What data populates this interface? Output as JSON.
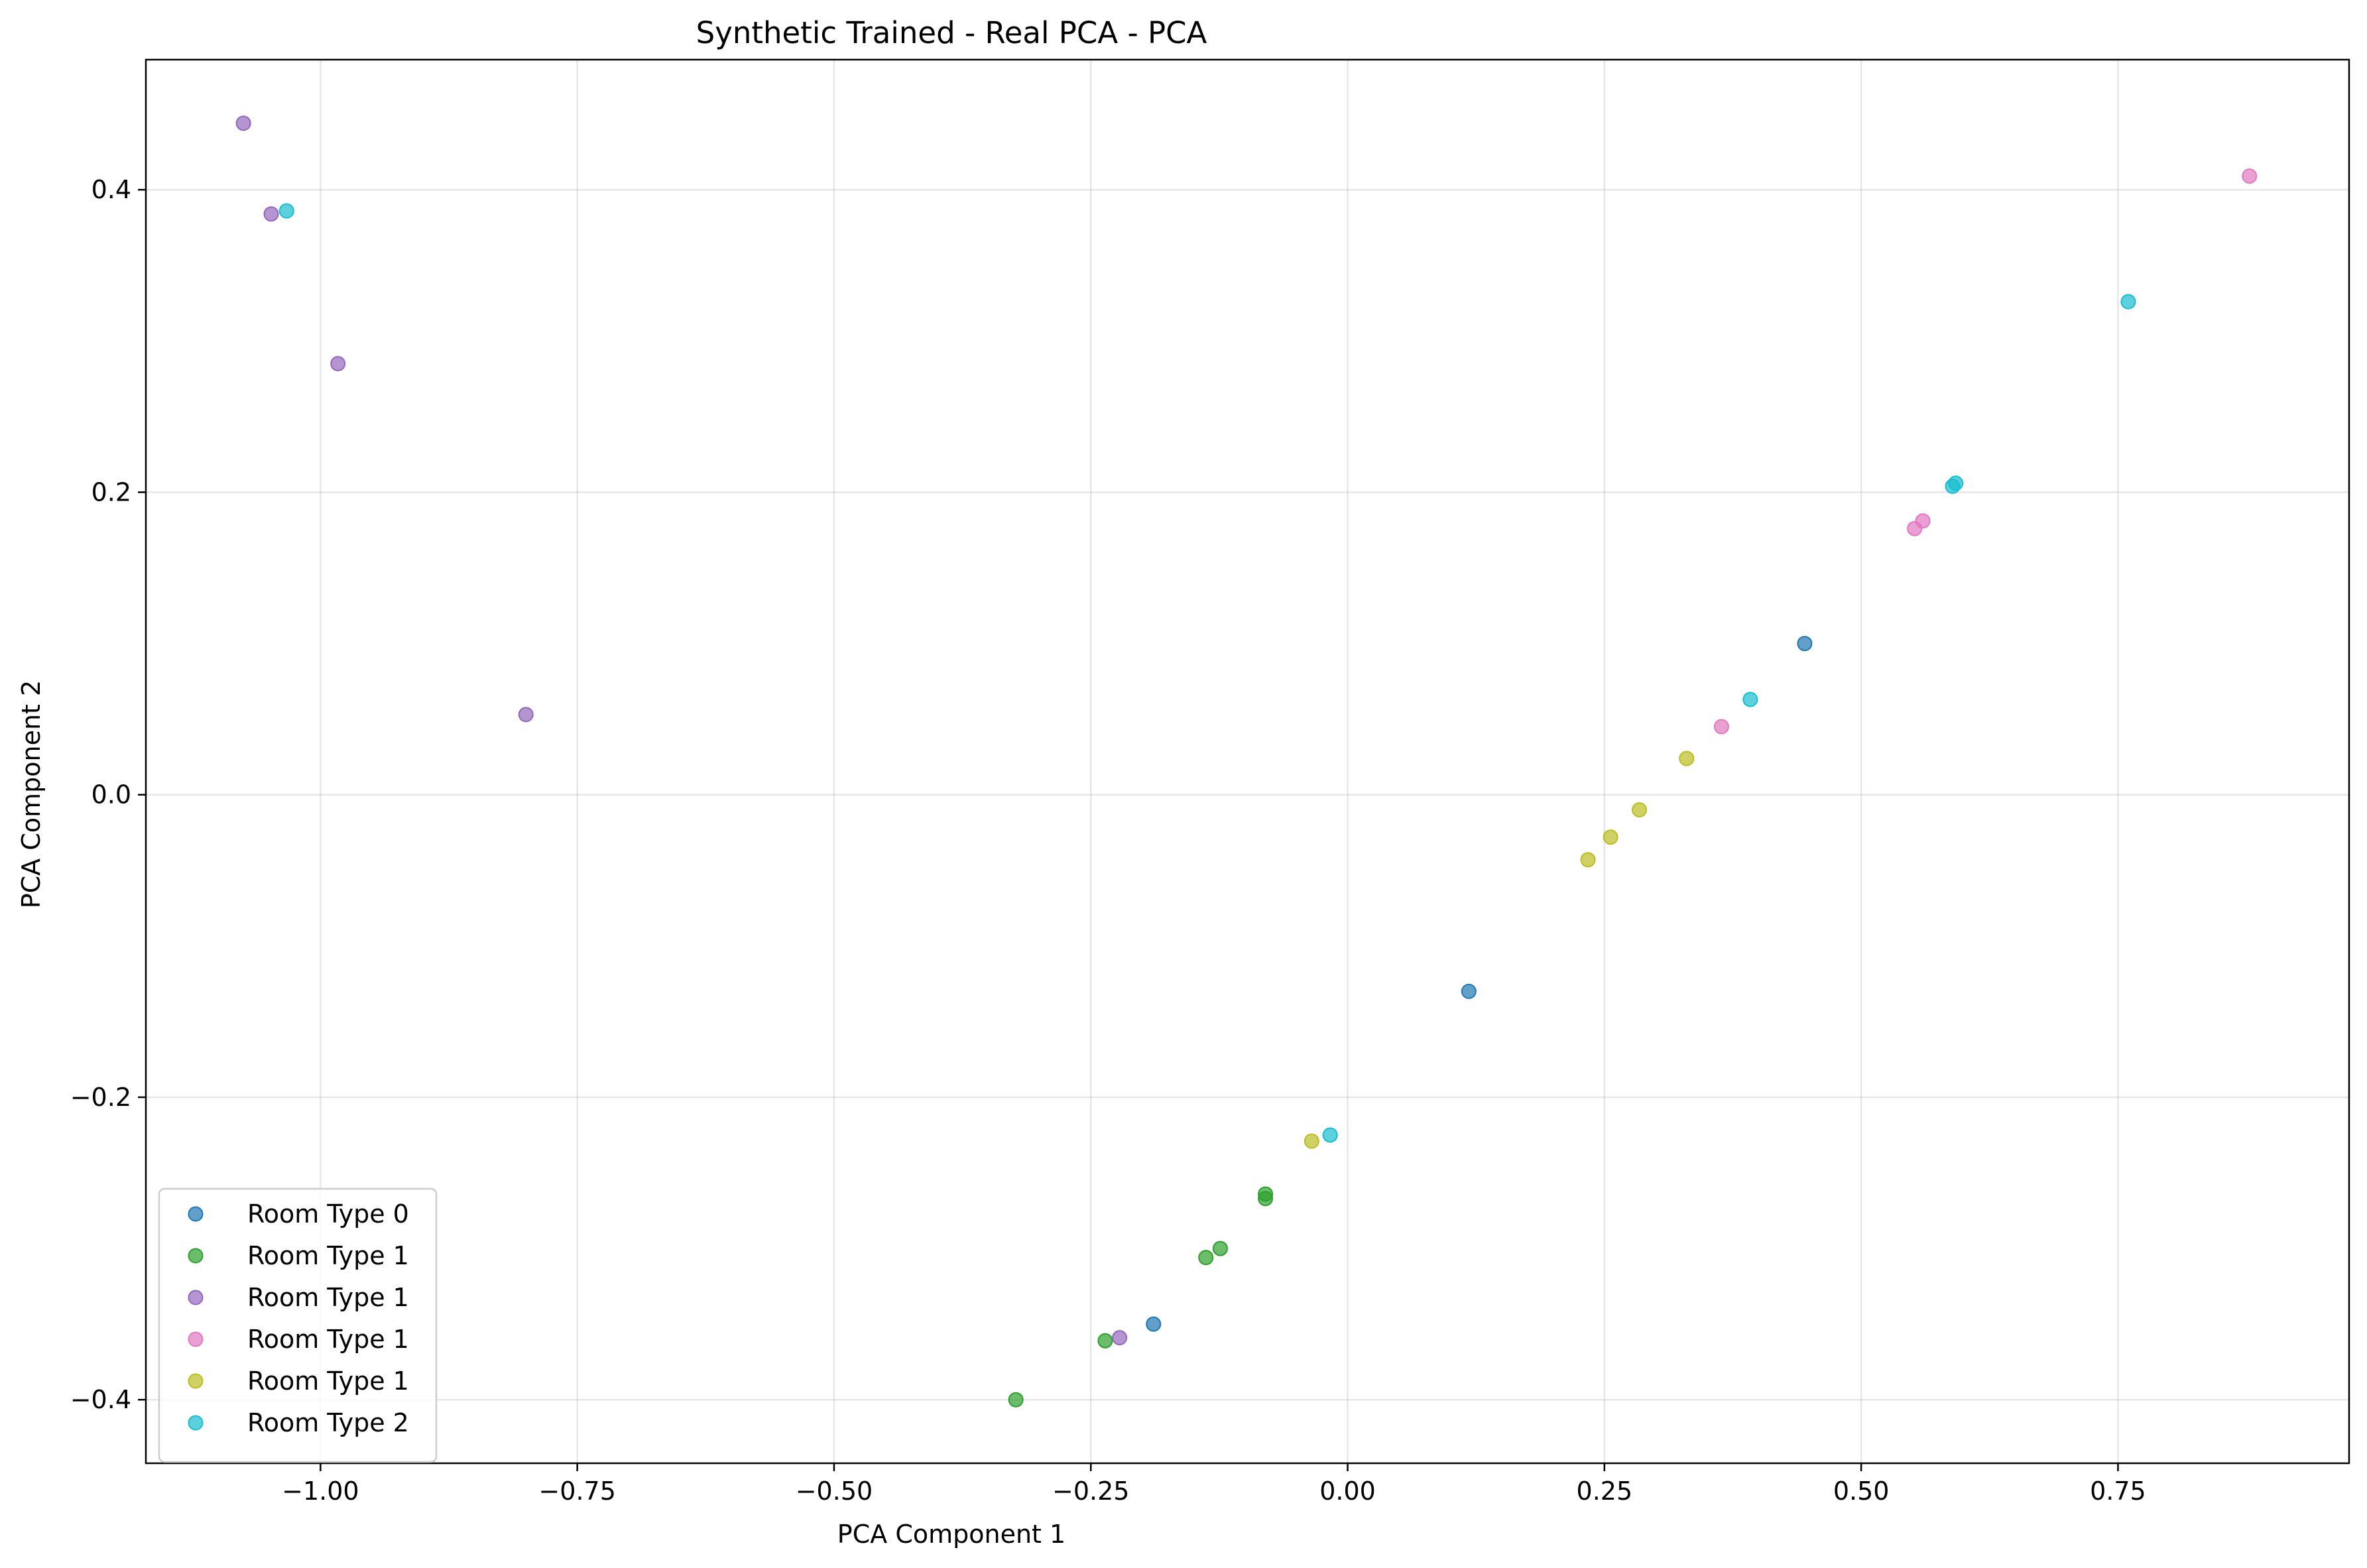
{
  "chart_data": {
    "type": "scatter",
    "title": "Synthetic Trained - Real PCA - PCA",
    "xlabel": "PCA Component 1",
    "ylabel": "PCA Component 2",
    "xlim": [
      -1.17,
      0.975
    ],
    "ylim": [
      -0.442,
      0.486
    ],
    "xticks": [
      -1.0,
      -0.75,
      -0.5,
      -0.25,
      0.0,
      0.25,
      0.5,
      0.75
    ],
    "xtick_labels": [
      "−1.00",
      "−0.75",
      "−0.50",
      "−0.25",
      "0.00",
      "0.25",
      "0.50",
      "0.75"
    ],
    "yticks": [
      -0.4,
      -0.2,
      0.0,
      0.2,
      0.4
    ],
    "ytick_labels": [
      "−0.4",
      "−0.2",
      "0.0",
      "0.2",
      "0.4"
    ],
    "grid": true,
    "legend_position": "lower-left",
    "series": [
      {
        "name": "Room Type 0",
        "color": "#1f77b4",
        "points": [
          [
            0.445,
            0.1
          ],
          [
            0.118,
            -0.13
          ],
          [
            -0.189,
            -0.35
          ]
        ]
      },
      {
        "name": "Room Type 1",
        "color": "#2ca02c",
        "points": [
          [
            -0.08,
            -0.264
          ],
          [
            -0.08,
            -0.267
          ],
          [
            -0.124,
            -0.3
          ],
          [
            -0.138,
            -0.306
          ],
          [
            -0.236,
            -0.361
          ],
          [
            -0.323,
            -0.4
          ]
        ]
      },
      {
        "name": "Room Type 1",
        "color": "#9467bd",
        "points": [
          [
            -1.075,
            0.444
          ],
          [
            -1.048,
            0.384
          ],
          [
            -0.983,
            0.285
          ],
          [
            -0.8,
            0.053
          ],
          [
            -0.222,
            -0.359
          ]
        ]
      },
      {
        "name": "Room Type 1",
        "color": "#e377c2",
        "points": [
          [
            0.878,
            0.409
          ],
          [
            0.56,
            0.181
          ],
          [
            0.552,
            0.176
          ],
          [
            0.364,
            0.045
          ]
        ]
      },
      {
        "name": "Room Type 1",
        "color": "#bcbd22",
        "points": [
          [
            0.33,
            0.024
          ],
          [
            0.284,
            -0.01
          ],
          [
            0.256,
            -0.028
          ],
          [
            0.234,
            -0.043
          ],
          [
            -0.035,
            -0.229
          ]
        ]
      },
      {
        "name": "Room Type 2",
        "color": "#17becf",
        "points": [
          [
            -1.033,
            0.386
          ],
          [
            0.76,
            0.326
          ],
          [
            0.592,
            0.206
          ],
          [
            0.589,
            0.204
          ],
          [
            0.392,
            0.063
          ],
          [
            -0.017,
            -0.225
          ]
        ]
      }
    ]
  }
}
